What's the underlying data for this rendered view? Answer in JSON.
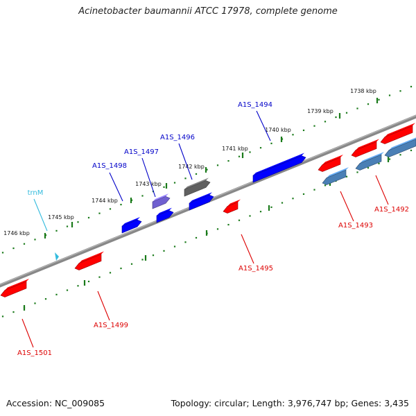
{
  "title": "Acinetobacter baumannii ATCC 17978, complete genome",
  "footer": {
    "accession": "Accession: NC_009085",
    "summary": "Topology: circular; Length: 3,976,747 bp; Genes: 3,435"
  },
  "colors": {
    "forward_gene": "#0000ff",
    "reverse_gene": "#ff0000",
    "reverse_light": "#4a7fb5",
    "forward_light": "#7060d0",
    "pseudo": "#606060",
    "trna": "#33bbdd",
    "ruler": "#1a7a1a",
    "backbone": "#888888"
  },
  "ruler_ticks": [
    {
      "label": "1738 kbp"
    },
    {
      "label": "1739 kbp"
    },
    {
      "label": "1740 kbp"
    },
    {
      "label": "1741 kbp"
    },
    {
      "label": "1742 kbp"
    },
    {
      "label": "1743 kbp"
    },
    {
      "label": "1744 kbp"
    },
    {
      "label": "1745 kbp"
    },
    {
      "label": "1746 kbp"
    }
  ],
  "gene_labels": [
    {
      "name": "A1S_1494",
      "strand": "forward"
    },
    {
      "name": "A1S_1496",
      "strand": "forward"
    },
    {
      "name": "A1S_1497",
      "strand": "forward"
    },
    {
      "name": "A1S_1498",
      "strand": "forward"
    },
    {
      "name": "trnM",
      "strand": "trna"
    },
    {
      "name": "A1S_1492",
      "strand": "reverse"
    },
    {
      "name": "A1S_1493",
      "strand": "reverse"
    },
    {
      "name": "A1S_1495",
      "strand": "reverse"
    },
    {
      "name": "A1S_1499",
      "strand": "reverse"
    },
    {
      "name": "A1S_1501",
      "strand": "reverse"
    }
  ]
}
